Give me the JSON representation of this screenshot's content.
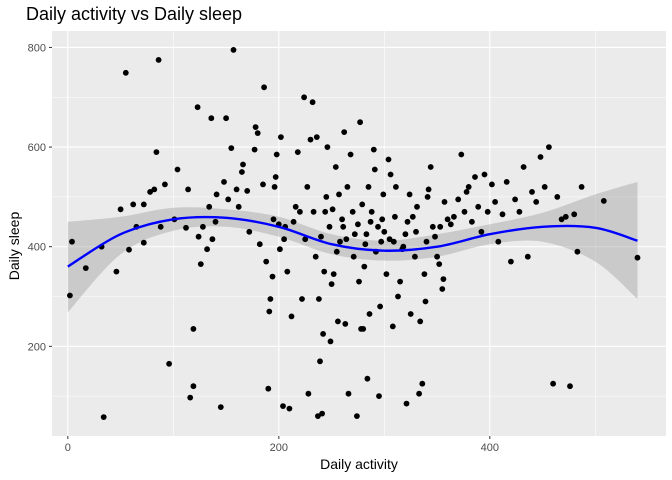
{
  "chart_data": {
    "type": "scatter",
    "title": "Daily activity vs Daily sleep",
    "xlabel": "Daily activity",
    "ylabel": "Daily sleep",
    "xlim": [
      -15,
      567
    ],
    "ylim": [
      20,
      833
    ],
    "x_ticks": [
      0,
      200,
      400
    ],
    "y_ticks": [
      200,
      400,
      600,
      800
    ],
    "x_tick_labels": [
      "0",
      "200",
      "400"
    ],
    "y_tick_labels": [
      "200",
      "400",
      "600",
      "800"
    ],
    "grid": true,
    "legend": "none",
    "colors": {
      "panel_background": "#ebebeb",
      "grid_major": "#ffffff",
      "points": "#000000",
      "smooth_line": "#0000ff",
      "confidence_band": "#999999"
    },
    "points": [
      [
        2,
        302
      ],
      [
        4,
        410
      ],
      [
        17,
        357
      ],
      [
        32,
        400
      ],
      [
        34,
        58
      ],
      [
        46,
        350
      ],
      [
        50,
        475
      ],
      [
        55,
        749
      ],
      [
        58,
        394
      ],
      [
        62,
        485
      ],
      [
        65,
        440
      ],
      [
        72,
        485
      ],
      [
        72,
        408
      ],
      [
        78,
        510
      ],
      [
        82,
        515
      ],
      [
        84,
        590
      ],
      [
        86,
        775
      ],
      [
        88,
        440
      ],
      [
        92,
        525
      ],
      [
        96,
        165
      ],
      [
        101,
        455
      ],
      [
        104,
        555
      ],
      [
        112,
        438
      ],
      [
        114,
        515
      ],
      [
        116,
        97
      ],
      [
        119,
        235
      ],
      [
        119,
        120
      ],
      [
        123,
        680
      ],
      [
        124,
        420
      ],
      [
        126,
        365
      ],
      [
        128,
        440
      ],
      [
        132,
        395
      ],
      [
        134,
        480
      ],
      [
        136,
        658
      ],
      [
        137,
        415
      ],
      [
        140,
        450
      ],
      [
        141,
        505
      ],
      [
        145,
        78
      ],
      [
        148,
        530
      ],
      [
        150,
        658
      ],
      [
        152,
        495
      ],
      [
        155,
        598
      ],
      [
        157,
        795
      ],
      [
        160,
        515
      ],
      [
        162,
        480
      ],
      [
        165,
        550
      ],
      [
        166,
        565
      ],
      [
        170,
        512
      ],
      [
        172,
        430
      ],
      [
        177,
        595
      ],
      [
        178,
        640
      ],
      [
        180,
        628
      ],
      [
        182,
        405
      ],
      [
        185,
        525
      ],
      [
        186,
        720
      ],
      [
        188,
        370
      ],
      [
        190,
        115
      ],
      [
        191,
        270
      ],
      [
        192,
        295
      ],
      [
        194,
        340
      ],
      [
        195,
        455
      ],
      [
        196,
        520
      ],
      [
        197,
        540
      ],
      [
        198,
        585
      ],
      [
        200,
        445
      ],
      [
        201,
        395
      ],
      [
        202,
        620
      ],
      [
        204,
        80
      ],
      [
        205,
        415
      ],
      [
        206,
        440
      ],
      [
        208,
        350
      ],
      [
        210,
        75
      ],
      [
        212,
        260
      ],
      [
        214,
        450
      ],
      [
        216,
        480
      ],
      [
        218,
        590
      ],
      [
        220,
        470
      ],
      [
        222,
        295
      ],
      [
        224,
        700
      ],
      [
        225,
        415
      ],
      [
        227,
        520
      ],
      [
        228,
        105
      ],
      [
        230,
        615
      ],
      [
        232,
        690
      ],
      [
        233,
        470
      ],
      [
        235,
        380
      ],
      [
        236,
        620
      ],
      [
        237,
        60
      ],
      [
        238,
        295
      ],
      [
        239,
        170
      ],
      [
        240,
        420
      ],
      [
        241,
        65
      ],
      [
        242,
        225
      ],
      [
        243,
        350
      ],
      [
        244,
        470
      ],
      [
        245,
        500
      ],
      [
        246,
        600
      ],
      [
        248,
        440
      ],
      [
        249,
        210
      ],
      [
        250,
        325
      ],
      [
        251,
        475
      ],
      [
        252,
        345
      ],
      [
        254,
        560
      ],
      [
        255,
        390
      ],
      [
        256,
        250
      ],
      [
        257,
        505
      ],
      [
        258,
        410
      ],
      [
        260,
        455
      ],
      [
        261,
        440
      ],
      [
        262,
        630
      ],
      [
        263,
        245
      ],
      [
        264,
        415
      ],
      [
        265,
        520
      ],
      [
        266,
        105
      ],
      [
        268,
        585
      ],
      [
        270,
        470
      ],
      [
        271,
        380
      ],
      [
        272,
        425
      ],
      [
        274,
        60
      ],
      [
        275,
        445
      ],
      [
        276,
        330
      ],
      [
        277,
        650
      ],
      [
        278,
        235
      ],
      [
        279,
        485
      ],
      [
        280,
        235
      ],
      [
        281,
        360
      ],
      [
        282,
        405
      ],
      [
        283,
        425
      ],
      [
        284,
        135
      ],
      [
        285,
        520
      ],
      [
        286,
        265
      ],
      [
        287,
        450
      ],
      [
        288,
        470
      ],
      [
        290,
        595
      ],
      [
        291,
        555
      ],
      [
        292,
        390
      ],
      [
        294,
        440
      ],
      [
        295,
        100
      ],
      [
        296,
        280
      ],
      [
        297,
        410
      ],
      [
        298,
        455
      ],
      [
        299,
        505
      ],
      [
        300,
        430
      ],
      [
        302,
        345
      ],
      [
        304,
        575
      ],
      [
        305,
        415
      ],
      [
        306,
        545
      ],
      [
        308,
        240
      ],
      [
        309,
        410
      ],
      [
        310,
        460
      ],
      [
        311,
        520
      ],
      [
        313,
        300
      ],
      [
        315,
        330
      ],
      [
        317,
        395
      ],
      [
        318,
        400
      ],
      [
        320,
        425
      ],
      [
        321,
        85
      ],
      [
        322,
        450
      ],
      [
        324,
        505
      ],
      [
        325,
        265
      ],
      [
        327,
        460
      ],
      [
        329,
        380
      ],
      [
        330,
        430
      ],
      [
        331,
        480
      ],
      [
        333,
        105
      ],
      [
        334,
        250
      ],
      [
        336,
        125
      ],
      [
        338,
        345
      ],
      [
        339,
        290
      ],
      [
        340,
        410
      ],
      [
        341,
        500
      ],
      [
        342,
        515
      ],
      [
        344,
        560
      ],
      [
        346,
        440
      ],
      [
        348,
        420
      ],
      [
        350,
        380
      ],
      [
        352,
        365
      ],
      [
        353,
        440
      ],
      [
        355,
        315
      ],
      [
        356,
        335
      ],
      [
        357,
        490
      ],
      [
        360,
        455
      ],
      [
        363,
        445
      ],
      [
        366,
        460
      ],
      [
        370,
        495
      ],
      [
        373,
        585
      ],
      [
        376,
        470
      ],
      [
        378,
        510
      ],
      [
        380,
        520
      ],
      [
        383,
        450
      ],
      [
        386,
        540
      ],
      [
        389,
        480
      ],
      [
        392,
        430
      ],
      [
        395,
        545
      ],
      [
        398,
        470
      ],
      [
        402,
        525
      ],
      [
        405,
        490
      ],
      [
        408,
        410
      ],
      [
        412,
        465
      ],
      [
        416,
        530
      ],
      [
        420,
        370
      ],
      [
        424,
        495
      ],
      [
        428,
        470
      ],
      [
        432,
        560
      ],
      [
        436,
        380
      ],
      [
        440,
        510
      ],
      [
        444,
        490
      ],
      [
        448,
        580
      ],
      [
        452,
        520
      ],
      [
        456,
        600
      ],
      [
        460,
        125
      ],
      [
        464,
        500
      ],
      [
        468,
        455
      ],
      [
        472,
        460
      ],
      [
        476,
        120
      ],
      [
        480,
        465
      ],
      [
        483,
        390
      ],
      [
        487,
        520
      ],
      [
        508,
        492
      ],
      [
        540,
        378
      ]
    ],
    "smooth_curve": {
      "x": [
        0,
        50,
        100,
        150,
        200,
        250,
        300,
        350,
        400,
        450,
        500,
        540
      ],
      "y": [
        360,
        425,
        455,
        458,
        440,
        405,
        392,
        400,
        425,
        440,
        438,
        412
      ],
      "ci_upper": [
        450,
        460,
        478,
        475,
        460,
        425,
        412,
        425,
        445,
        468,
        505,
        530
      ],
      "ci_lower": [
        268,
        385,
        432,
        440,
        420,
        385,
        372,
        380,
        405,
        410,
        370,
        295
      ]
    }
  }
}
